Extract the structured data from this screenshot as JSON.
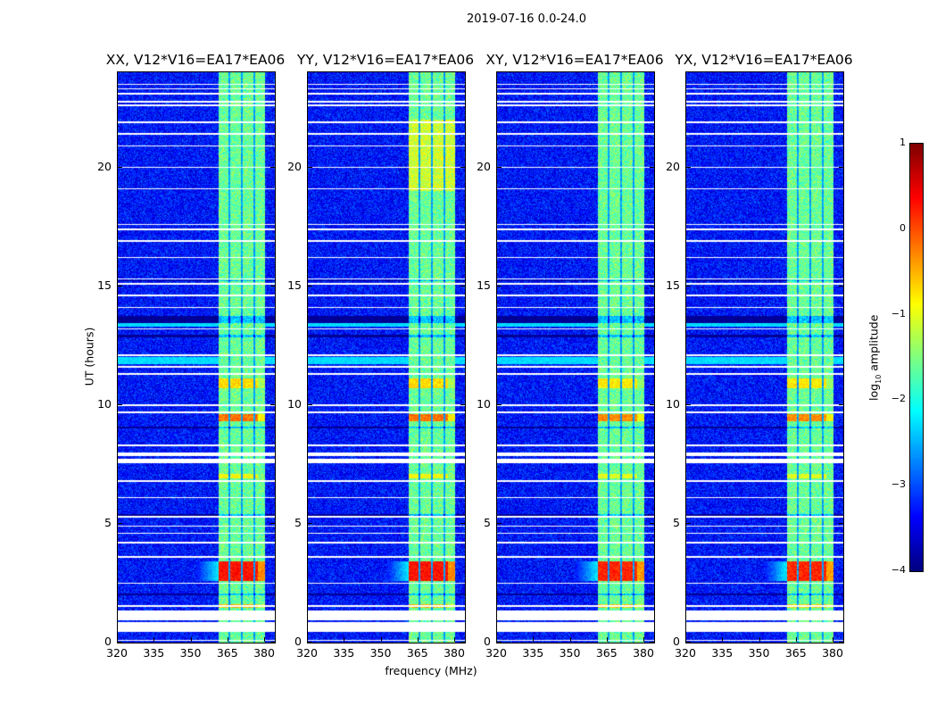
{
  "chart_data": {
    "type": "heatmap",
    "title": "2019-07-16 0.0-24.0",
    "xlabel": "frequency (MHz)",
    "ylabel": "UT (hours)",
    "xlim": [
      320,
      384
    ],
    "ylim": [
      0,
      24
    ],
    "xticks": [
      320,
      335,
      350,
      365,
      380
    ],
    "yticks": [
      0,
      5,
      10,
      15,
      20
    ],
    "panels": [
      {
        "title": "XX, V12*V16=EA17*EA06",
        "pol": "XX"
      },
      {
        "title": "YY, V12*V16=EA17*EA06",
        "pol": "YY"
      },
      {
        "title": "XY, V12*V16=EA17*EA06",
        "pol": "XY"
      },
      {
        "title": "YX, V12*V16=EA17*EA06",
        "pol": "YX"
      }
    ],
    "colorbar": {
      "label_prefix": "log",
      "label_sub": "10",
      "label_suffix": " amplitude",
      "range": [
        -4,
        1
      ],
      "ticks": [
        "1",
        "0",
        "−1",
        "−2",
        "−3",
        "−4"
      ],
      "tick_values": [
        1,
        0,
        -1,
        -2,
        -3,
        -4
      ],
      "colormap": "jet"
    },
    "background_level": -3.3,
    "band": {
      "start_mhz": 361,
      "end_mhz": 380,
      "level": -1.6,
      "channel_edges_mhz": [
        365.5,
        370.5,
        375.5
      ]
    },
    "rfi_bursts": [
      {
        "start": 2.6,
        "end": 3.4,
        "level": 0.3
      },
      {
        "start": 1.45,
        "end": 1.6,
        "level": -0.5
      },
      {
        "start": 9.3,
        "end": 9.6,
        "level": -0.2
      },
      {
        "start": 10.7,
        "end": 11.1,
        "level": -0.7
      },
      {
        "start": 6.9,
        "end": 7.1,
        "level": -0.9
      }
    ],
    "flagged_intervals": [
      [
        0.45,
        0.85
      ],
      [
        0.95,
        1.35
      ],
      [
        7.55,
        7.75
      ],
      [
        7.85,
        8.0
      ]
    ],
    "flagged_rows": [
      0.1,
      1.55,
      2.5,
      3.6,
      4.2,
      4.6,
      4.9,
      5.3,
      6.1,
      6.8,
      8.3,
      9.7,
      10.0,
      11.3,
      11.6,
      12.1,
      13.2,
      14.1,
      14.6,
      15.1,
      15.3,
      16.2,
      16.9,
      17.4,
      17.6,
      19.1,
      20.0,
      20.9,
      21.4,
      21.9,
      22.6,
      22.75,
      23.1,
      23.3,
      23.5
    ],
    "dark_rows": [
      [
        13.45,
        13.75
      ],
      [
        12.85,
        12.95
      ],
      [
        9.0,
        9.1
      ],
      [
        5.35,
        5.4
      ],
      [
        2.0,
        2.05
      ],
      [
        15.2,
        15.25
      ]
    ],
    "cyan_rows": [
      [
        11.7,
        12.0
      ],
      [
        13.3,
        13.45
      ]
    ]
  }
}
